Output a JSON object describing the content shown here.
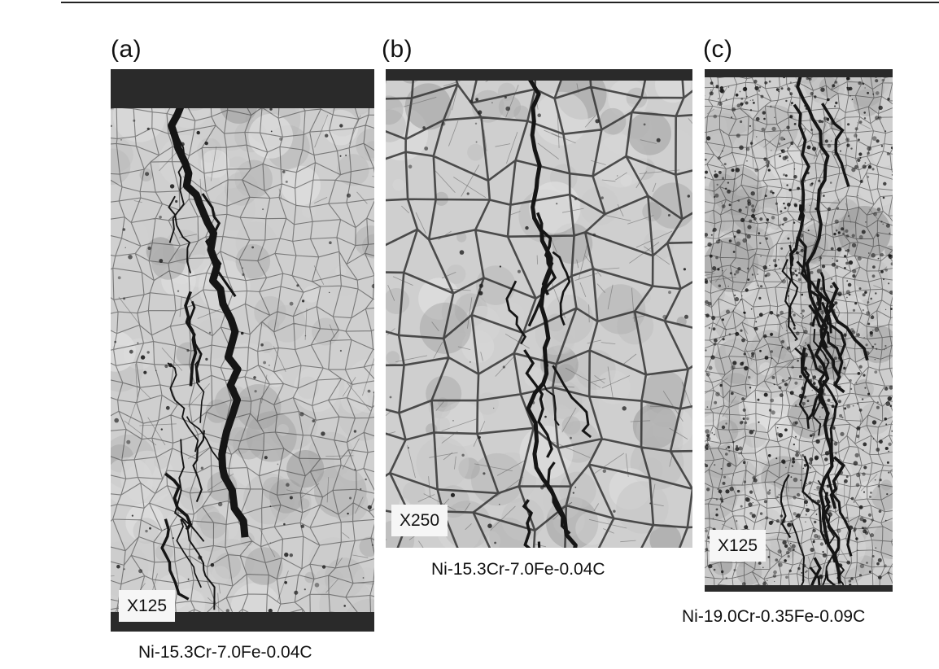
{
  "figure": {
    "panels": [
      {
        "letter": "(a)",
        "magnification": "X125",
        "caption": "Ni-15.3Cr-7.0Fe-0.04C",
        "image": "grain-micrograph-intergranular-crack"
      },
      {
        "letter": "(b)",
        "magnification": "X250",
        "caption": "Ni-15.3Cr-7.0Fe-0.04C",
        "image": "grain-micrograph-grain-boundaries"
      },
      {
        "letter": "(c)",
        "magnification": "X125",
        "caption": "Ni-19.0Cr-0.35Fe-0.09C",
        "image": "grain-micrograph-branched-cracking"
      }
    ]
  },
  "colors": {
    "background": "#ffffff",
    "micro_light": "#cfcfcf",
    "micro_dark": "#151515"
  }
}
